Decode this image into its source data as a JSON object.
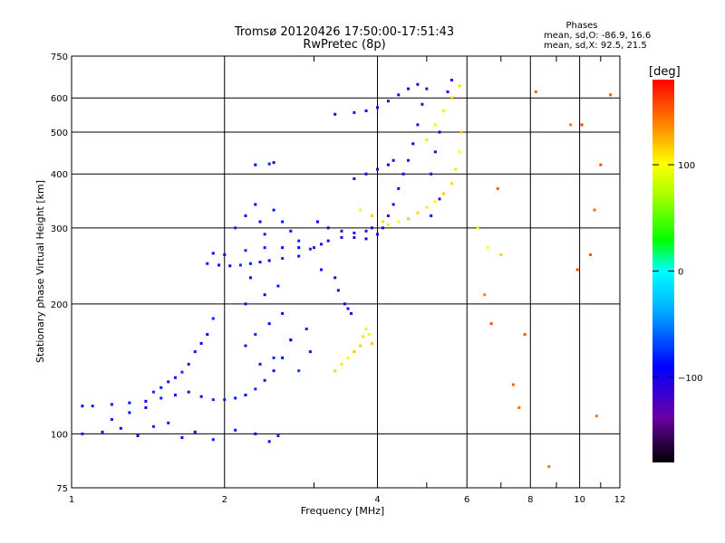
{
  "chart_data": {
    "type": "scatter",
    "title": "Tromsø 20120426 17:50:00-17:51:43",
    "subtitle": "RwPretec (8p)",
    "xlabel": "Frequency [MHz]",
    "ylabel": "Stationary phase Virtual Height [km]",
    "x_scale": "log",
    "y_scale": "log",
    "xlim": [
      1,
      12
    ],
    "ylim": [
      75,
      750
    ],
    "x_ticks": [
      1,
      2,
      4,
      6,
      8,
      10,
      12
    ],
    "x_tick_labels": [
      "1",
      "2",
      "4",
      "6",
      "8",
      "10",
      "12"
    ],
    "y_ticks": [
      75,
      100,
      200,
      300,
      400,
      500,
      600,
      750
    ],
    "y_tick_labels": [
      "75",
      "100",
      "200",
      "300",
      "400",
      "500",
      "600",
      "750"
    ],
    "grid": true,
    "phases_header": "Phases",
    "phases_o": "mean, sd,O: -86.9, 16.6",
    "phases_x": "mean, sd,X:  92.5, 21.5",
    "colorbar": {
      "label": "[deg]",
      "range": [
        -180,
        180
      ],
      "ticks": [
        100,
        0,
        -100
      ],
      "tick_labels": [
        "100",
        "0",
        "−100"
      ]
    },
    "series": [
      {
        "values": [
          [
            1.05,
            116
          ],
          [
            1.1,
            116
          ],
          [
            1.2,
            117
          ],
          [
            1.3,
            118
          ],
          [
            1.4,
            119
          ],
          [
            1.5,
            121
          ],
          [
            1.6,
            123
          ],
          [
            1.7,
            125
          ],
          [
            1.8,
            122
          ],
          [
            1.9,
            120
          ],
          [
            2.0,
            120
          ],
          [
            2.1,
            121
          ],
          [
            2.2,
            123
          ],
          [
            2.3,
            127
          ],
          [
            2.4,
            133
          ],
          [
            2.5,
            140
          ],
          [
            2.6,
            150
          ],
          [
            2.7,
            165
          ],
          [
            1.05,
            100
          ],
          [
            1.15,
            101
          ],
          [
            1.25,
            103
          ],
          [
            1.35,
            99
          ],
          [
            1.45,
            104
          ],
          [
            1.55,
            106
          ],
          [
            1.65,
            98
          ],
          [
            1.75,
            101
          ],
          [
            1.9,
            97
          ],
          [
            2.1,
            102
          ],
          [
            2.3,
            100
          ],
          [
            2.45,
            96
          ],
          [
            2.55,
            99
          ],
          [
            1.2,
            108
          ],
          [
            1.3,
            112
          ],
          [
            1.4,
            115
          ],
          [
            1.45,
            125
          ],
          [
            1.5,
            128
          ],
          [
            1.55,
            132
          ],
          [
            1.6,
            135
          ],
          [
            1.65,
            139
          ],
          [
            1.7,
            145
          ],
          [
            1.75,
            155
          ],
          [
            1.8,
            162
          ],
          [
            1.85,
            170
          ],
          [
            1.9,
            185
          ],
          [
            1.85,
            248
          ],
          [
            1.95,
            246
          ],
          [
            2.05,
            245
          ],
          [
            2.15,
            246
          ],
          [
            2.25,
            248
          ],
          [
            2.35,
            250
          ],
          [
            2.45,
            252
          ],
          [
            2.6,
            255
          ],
          [
            2.8,
            258
          ],
          [
            1.9,
            262
          ],
          [
            2.0,
            260
          ],
          [
            2.2,
            266
          ],
          [
            2.4,
            270
          ],
          [
            2.6,
            270
          ],
          [
            2.8,
            270
          ],
          [
            2.95,
            268
          ],
          [
            2.1,
            300
          ],
          [
            2.2,
            320
          ],
          [
            2.3,
            340
          ],
          [
            2.35,
            310
          ],
          [
            2.4,
            290
          ],
          [
            2.5,
            330
          ],
          [
            2.6,
            310
          ],
          [
            2.7,
            295
          ],
          [
            2.8,
            280
          ],
          [
            2.2,
            160
          ],
          [
            2.2,
            200
          ],
          [
            2.25,
            230
          ],
          [
            2.3,
            170
          ],
          [
            2.35,
            145
          ],
          [
            2.4,
            210
          ],
          [
            2.45,
            180
          ],
          [
            2.5,
            150
          ],
          [
            2.55,
            220
          ],
          [
            2.6,
            190
          ],
          [
            2.7,
            165
          ],
          [
            2.8,
            140
          ],
          [
            2.9,
            175
          ],
          [
            2.95,
            155
          ],
          [
            2.3,
            420
          ],
          [
            2.5,
            425
          ],
          [
            2.45,
            422
          ]
        ]
      },
      {
        "values": [
          [
            3.0,
            270
          ],
          [
            3.1,
            275
          ],
          [
            3.2,
            280
          ],
          [
            3.4,
            285
          ],
          [
            3.6,
            285
          ],
          [
            3.8,
            283
          ],
          [
            4.0,
            290
          ],
          [
            4.1,
            300
          ],
          [
            4.2,
            320
          ],
          [
            4.3,
            340
          ],
          [
            4.4,
            370
          ],
          [
            4.5,
            400
          ],
          [
            4.6,
            430
          ],
          [
            4.7,
            470
          ],
          [
            4.8,
            520
          ],
          [
            4.9,
            580
          ],
          [
            5.0,
            630
          ],
          [
            3.05,
            310
          ],
          [
            3.2,
            300
          ],
          [
            3.4,
            295
          ],
          [
            3.6,
            292
          ],
          [
            3.8,
            295
          ],
          [
            3.9,
            300
          ],
          [
            3.6,
            390
          ],
          [
            3.8,
            400
          ],
          [
            4.0,
            410
          ],
          [
            4.2,
            420
          ],
          [
            4.3,
            430
          ],
          [
            3.3,
            550
          ],
          [
            3.6,
            555
          ],
          [
            3.8,
            560
          ],
          [
            4.0,
            570
          ],
          [
            4.2,
            590
          ],
          [
            4.4,
            610
          ],
          [
            4.6,
            630
          ],
          [
            4.8,
            645
          ],
          [
            5.1,
            400
          ],
          [
            5.2,
            450
          ],
          [
            5.3,
            500
          ],
          [
            5.4,
            560
          ],
          [
            5.5,
            620
          ],
          [
            5.6,
            660
          ],
          [
            5.3,
            350
          ],
          [
            5.1,
            320
          ],
          [
            3.1,
            240
          ],
          [
            3.3,
            230
          ],
          [
            3.35,
            215
          ],
          [
            3.45,
            200
          ],
          [
            3.5,
            195
          ],
          [
            3.55,
            190
          ]
        ]
      },
      {
        "values": [
          [
            3.7,
            330
          ],
          [
            3.9,
            320
          ],
          [
            4.1,
            310
          ],
          [
            4.2,
            305
          ],
          [
            4.4,
            310
          ],
          [
            4.6,
            315
          ],
          [
            4.8,
            325
          ],
          [
            5.0,
            335
          ],
          [
            5.2,
            345
          ],
          [
            5.4,
            360
          ],
          [
            5.6,
            380
          ],
          [
            5.7,
            410
          ],
          [
            5.8,
            450
          ],
          [
            5.85,
            500
          ],
          [
            3.3,
            140
          ],
          [
            3.4,
            145
          ],
          [
            3.5,
            150
          ],
          [
            3.6,
            155
          ],
          [
            3.7,
            160
          ],
          [
            3.75,
            168
          ],
          [
            3.8,
            175
          ],
          [
            3.85,
            170
          ],
          [
            3.9,
            162
          ],
          [
            5.0,
            480
          ],
          [
            5.2,
            520
          ],
          [
            5.4,
            560
          ],
          [
            5.6,
            600
          ],
          [
            5.8,
            640
          ],
          [
            6.3,
            300
          ],
          [
            6.6,
            270
          ],
          [
            7.0,
            260
          ]
        ]
      },
      {
        "values": [
          [
            6.5,
            210
          ],
          [
            6.7,
            180
          ],
          [
            7.4,
            130
          ],
          [
            7.6,
            115
          ],
          [
            8.7,
            84
          ],
          [
            9.9,
            240
          ],
          [
            10.5,
            260
          ],
          [
            10.7,
            330
          ],
          [
            10.8,
            110
          ],
          [
            11.0,
            420
          ],
          [
            11.5,
            610
          ],
          [
            8.2,
            620
          ],
          [
            9.6,
            520
          ],
          [
            10.1,
            520
          ],
          [
            7.8,
            170
          ],
          [
            6.9,
            370
          ]
        ]
      }
    ]
  }
}
